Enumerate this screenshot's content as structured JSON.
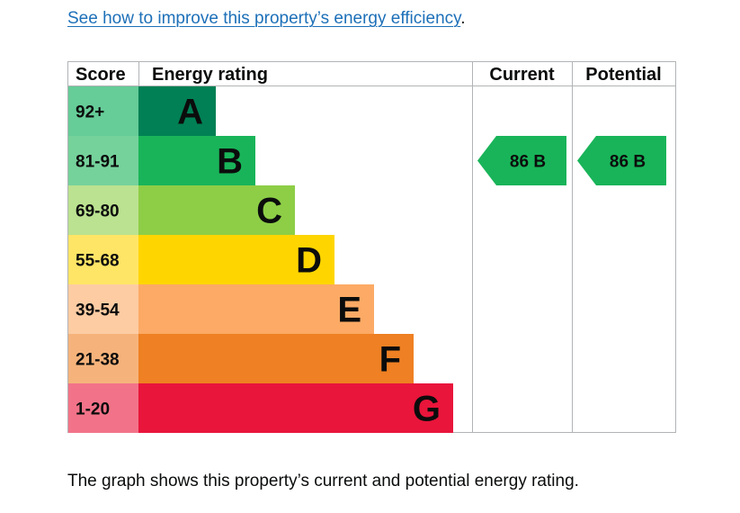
{
  "link": {
    "text": "See how to improve this property’s energy efficiency",
    "suffix": "."
  },
  "chart_data": {
    "type": "bar",
    "headers": {
      "score": "Score",
      "rating": "Energy rating",
      "current": "Current",
      "potential": "Potential"
    },
    "bands": [
      {
        "score": "92+",
        "letter": "A",
        "color": "#008054",
        "score_bg": "#66cc98"
      },
      {
        "score": "81-91",
        "letter": "B",
        "color": "#19b459",
        "score_bg": "#75d29b"
      },
      {
        "score": "69-80",
        "letter": "C",
        "color": "#8dce46",
        "score_bg": "#bbe290"
      },
      {
        "score": "55-68",
        "letter": "D",
        "color": "#ffd500",
        "score_bg": "#ffe566"
      },
      {
        "score": "39-54",
        "letter": "E",
        "color": "#fcaa65",
        "score_bg": "#fdcca3"
      },
      {
        "score": "21-38",
        "letter": "F",
        "color": "#ef8023",
        "score_bg": "#f5b37b"
      },
      {
        "score": "1-20",
        "letter": "G",
        "color": "#e9153b",
        "score_bg": "#f27389"
      }
    ],
    "current": {
      "value": 86,
      "band": "B",
      "label": "86  B",
      "color": "#19b459"
    },
    "potential": {
      "value": 86,
      "band": "B",
      "label": "86  B",
      "color": "#19b459"
    }
  },
  "caption": "The graph shows this property’s current and potential energy rating."
}
